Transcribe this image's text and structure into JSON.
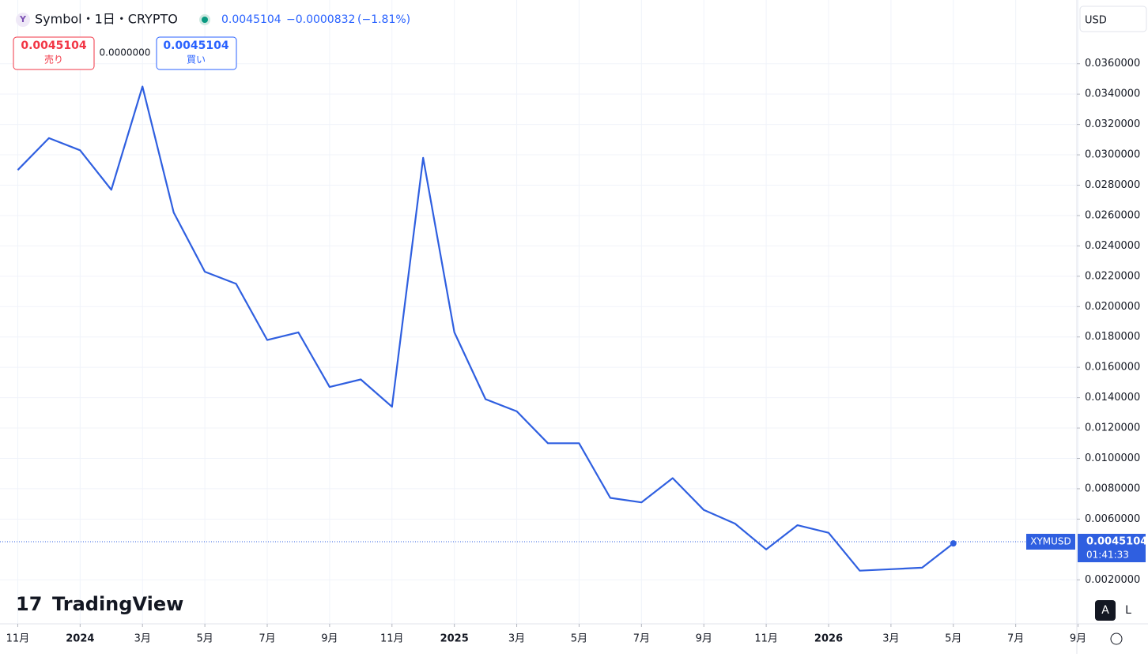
{
  "chart_data": {
    "type": "line",
    "title": "Symbol・1日・CRYPTO",
    "last_price": 0.0045104,
    "change": "−0.0000832",
    "change_pct": "(−1.81%)",
    "sell_label": "売り",
    "buy_label": "買い",
    "spread": "0.0000000",
    "currency": "USD",
    "symbol": "XYMUSD",
    "countdown": "01:41:33",
    "brand": "TradingView",
    "auto_button": "A",
    "log_button": "L",
    "x": [
      "2023-11",
      "2023-12",
      "2024-01",
      "2024-02",
      "2024-03",
      "2024-04",
      "2024-05",
      "2024-06",
      "2024-07",
      "2024-08",
      "2024-09",
      "2024-10",
      "2024-11",
      "2024-12",
      "2025-01",
      "2025-02",
      "2025-03",
      "2025-04",
      "2025-05",
      "2025-06",
      "2025-07",
      "2025-08",
      "2025-09",
      "2025-10",
      "2025-11",
      "2025-12",
      "2026-01",
      "2026-02",
      "2026-03",
      "2026-04",
      "2026-05"
    ],
    "series": [
      {
        "name": "XYMUSD",
        "color": "#2f5fe0",
        "values": [
          0.029,
          0.0311,
          0.0303,
          0.0277,
          0.0345,
          0.0262,
          0.0223,
          0.0215,
          0.0178,
          0.0183,
          0.0147,
          0.0152,
          0.0134,
          0.0298,
          0.0183,
          0.0139,
          0.0131,
          0.011,
          0.011,
          0.0074,
          0.0071,
          0.0087,
          0.0066,
          0.0057,
          0.004,
          0.0056,
          0.0051,
          0.0026,
          0.0027,
          0.0028,
          0.0044
        ]
      }
    ],
    "xlim": [
      "2023-10",
      "2026-10"
    ],
    "xticks": [
      {
        "value": "2023-11",
        "label": "11月"
      },
      {
        "value": "2024-01",
        "label": "2024"
      },
      {
        "value": "2024-03",
        "label": "3月"
      },
      {
        "value": "2024-05",
        "label": "5月"
      },
      {
        "value": "2024-07",
        "label": "7月"
      },
      {
        "value": "2024-09",
        "label": "9月"
      },
      {
        "value": "2024-11",
        "label": "11月"
      },
      {
        "value": "2025-01",
        "label": "2025"
      },
      {
        "value": "2025-03",
        "label": "3月"
      },
      {
        "value": "2025-05",
        "label": "5月"
      },
      {
        "value": "2025-07",
        "label": "7月"
      },
      {
        "value": "2025-09",
        "label": "9月"
      },
      {
        "value": "2025-11",
        "label": "11月"
      },
      {
        "value": "2026-01",
        "label": "2026"
      },
      {
        "value": "2026-03",
        "label": "3月"
      },
      {
        "value": "2026-05",
        "label": "5月"
      },
      {
        "value": "2026-07",
        "label": "7月"
      },
      {
        "value": "2026-09",
        "label": "9月"
      }
    ],
    "ylim": [
      -0.0009,
      0.0402
    ],
    "yticks": [
      {
        "value": 0.002,
        "label": "0.0020000"
      },
      {
        "value": 0.006,
        "label": "0.0060000"
      },
      {
        "value": 0.008,
        "label": "0.0080000"
      },
      {
        "value": 0.01,
        "label": "0.0100000"
      },
      {
        "value": 0.012,
        "label": "0.0120000"
      },
      {
        "value": 0.014,
        "label": "0.0140000"
      },
      {
        "value": 0.016,
        "label": "0.0160000"
      },
      {
        "value": 0.018,
        "label": "0.0180000"
      },
      {
        "value": 0.02,
        "label": "0.0200000"
      },
      {
        "value": 0.022,
        "label": "0.0220000"
      },
      {
        "value": 0.024,
        "label": "0.0240000"
      },
      {
        "value": 0.026,
        "label": "0.0260000"
      },
      {
        "value": 0.028,
        "label": "0.0280000"
      },
      {
        "value": 0.03,
        "label": "0.0300000"
      },
      {
        "value": 0.032,
        "label": "0.0320000"
      },
      {
        "value": 0.034,
        "label": "0.0340000"
      },
      {
        "value": 0.036,
        "label": "0.0360000"
      }
    ],
    "grid": true
  }
}
